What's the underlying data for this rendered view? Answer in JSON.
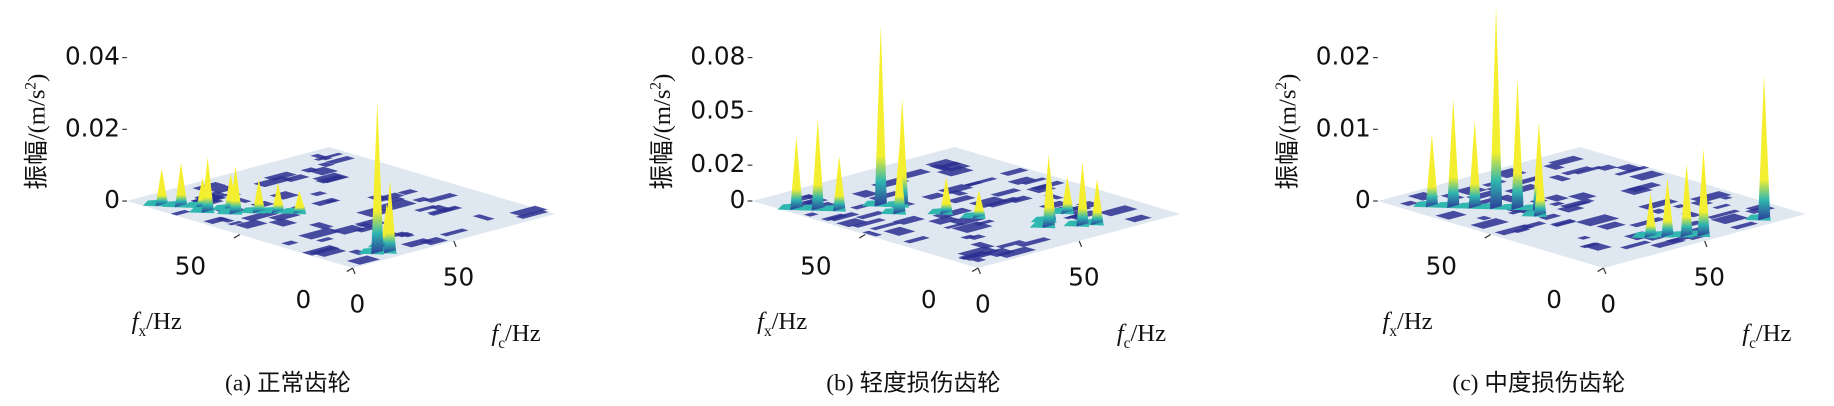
{
  "chart_data": [
    {
      "type": "surface3d",
      "caption": "(a) 正常齿轮",
      "zlabel": {
        "text": "振幅/(m/s",
        "sup": "2",
        "end": ")"
      },
      "xlabel": {
        "main": "f",
        "sub": "x",
        "unit": "/Hz"
      },
      "ylabel": {
        "main": "f",
        "sub": "c",
        "unit": "/Hz"
      },
      "xlim": [
        0,
        100
      ],
      "ylim": [
        0,
        100
      ],
      "zlim": [
        0,
        0.04
      ],
      "xticks": [
        0,
        50
      ],
      "yticks": [
        0,
        50
      ],
      "zticks": [
        0,
        0.02,
        0.04
      ],
      "colors": {
        "base": "#dfe7f1",
        "low": "#2c2f90",
        "mid": "#2fb7b0",
        "high": "#f7ef2c"
      },
      "x": [
        85,
        80,
        75,
        72,
        68,
        64,
        60,
        90,
        55,
        7,
        5,
        10
      ],
      "y": [
        10,
        15,
        12,
        20,
        18,
        25,
        30,
        6,
        35,
        20,
        24,
        28
      ],
      "values": [
        0.012,
        0.008,
        0.015,
        0.01,
        0.013,
        0.009,
        0.008,
        0.01,
        0.006,
        0.042,
        0.02,
        0.012
      ]
    },
    {
      "type": "surface3d",
      "caption": "(b) 轻度损伤齿轮",
      "zlabel": {
        "text": "振幅/(m/s",
        "sup": "2",
        "end": ")"
      },
      "xlabel": {
        "main": "f",
        "sub": "x",
        "unit": "/Hz"
      },
      "ylabel": {
        "main": "f",
        "sub": "c",
        "unit": "/Hz"
      },
      "xlim": [
        0,
        100
      ],
      "ylim": [
        0,
        100
      ],
      "zlim": [
        0,
        0.08
      ],
      "xticks": [
        0,
        50
      ],
      "yticks": [
        0,
        50
      ],
      "zticks": [
        0,
        0.02,
        0.05,
        0.08
      ],
      "colors": {
        "base": "#dfe7f1",
        "low": "#2c2f90",
        "mid": "#2fb7b0",
        "high": "#f7ef2c"
      },
      "x": [
        85,
        80,
        75,
        70,
        65,
        60,
        50,
        40,
        22,
        18,
        12,
        10,
        25
      ],
      "y": [
        5,
        10,
        15,
        30,
        35,
        28,
        40,
        45,
        60,
        55,
        65,
        70,
        72
      ],
      "values": [
        0.04,
        0.05,
        0.03,
        0.1,
        0.06,
        0.035,
        0.02,
        0.015,
        0.03,
        0.04,
        0.035,
        0.025,
        0.02
      ]
    },
    {
      "type": "surface3d",
      "caption": "(c) 中度损伤齿轮",
      "zlabel": {
        "text": "振幅/(m/s",
        "sup": "2",
        "end": ")"
      },
      "xlabel": {
        "main": "f",
        "sub": "x",
        "unit": "/Hz"
      },
      "ylabel": {
        "main": "f",
        "sub": "c",
        "unit": "/Hz"
      },
      "xlim": [
        0,
        100
      ],
      "ylim": [
        0,
        100
      ],
      "zlim": [
        0,
        0.02
      ],
      "xticks": [
        0,
        50
      ],
      "yticks": [
        0,
        50
      ],
      "zticks": [
        0,
        0.01,
        0.02
      ],
      "colors": {
        "base": "#dfe7f1",
        "low": "#2c2f90",
        "mid": "#2fb7b0",
        "high": "#f7ef2c"
      },
      "x": [
        85,
        80,
        75,
        70,
        65,
        60,
        55,
        12,
        8,
        5,
        5,
        15
      ],
      "y": [
        10,
        15,
        20,
        25,
        30,
        35,
        30,
        45,
        50,
        55,
        85,
        40
      ],
      "values": [
        0.01,
        0.015,
        0.012,
        0.028,
        0.018,
        0.012,
        0.008,
        0.008,
        0.01,
        0.012,
        0.02,
        0.006
      ]
    }
  ]
}
